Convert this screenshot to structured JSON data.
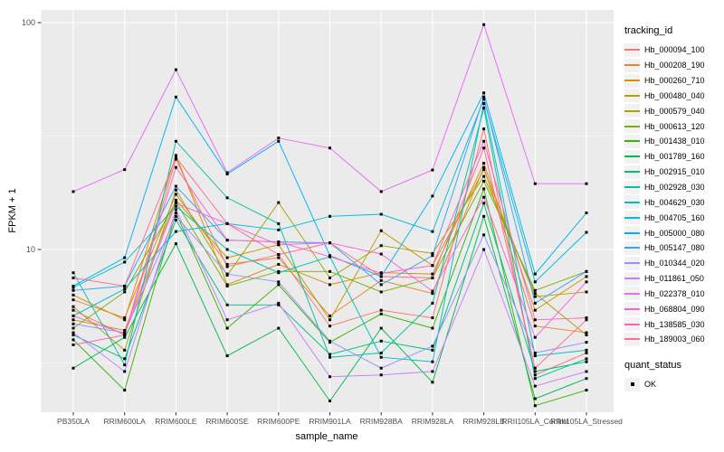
{
  "chart_data": {
    "type": "line",
    "title": "",
    "xlabel": "sample_name",
    "ylabel": "FPKM + 1",
    "y_scale": "log10",
    "y_ticks": [
      10,
      100
    ],
    "y_tick_labels": [
      "10",
      "100"
    ],
    "y_minor_ticks": [
      3.162,
      31.623
    ],
    "ylim": [
      1.9,
      115
    ],
    "grid": "major-and-minor-white-on-grey",
    "legend_position": "right",
    "point_marker": "filled-black-square",
    "categories": [
      "PB350LA",
      "RRIM600LA",
      "RRIM600LE",
      "RRIM600SE",
      "RRIM600PE",
      "RRIM901LA",
      "RRIM928BA",
      "RRIM928LA",
      "RRIM928LB",
      "RRII105LA_Control",
      "RRII105LA_Stressed"
    ],
    "series": [
      {
        "name": "Hb_000094_100",
        "color": "#F8766D",
        "values": [
          5.4,
          4.2,
          25,
          8.4,
          9.5,
          4.6,
          5.4,
          5.0,
          34,
          2.8,
          3.5
        ]
      },
      {
        "name": "Hb_000208_190",
        "color": "#EA8331",
        "values": [
          6.0,
          5.0,
          17.5,
          8.6,
          9.2,
          5.1,
          7.3,
          6.4,
          23,
          4.6,
          4.3
        ]
      },
      {
        "name": "Hb_000260_710",
        "color": "#D89000",
        "values": [
          6.3,
          4.9,
          26,
          7.0,
          8.6,
          7.0,
          7.9,
          7.8,
          24,
          5.4,
          7.6
        ]
      },
      {
        "name": "Hb_000480_040",
        "color": "#C09B00",
        "values": [
          4.9,
          4.4,
          16.5,
          9.2,
          10.5,
          4.9,
          12.1,
          8.5,
          22.5,
          6.2,
          6.5
        ]
      },
      {
        "name": "Hb_000579_040",
        "color": "#A3A500",
        "values": [
          5.6,
          3.6,
          18.3,
          7.7,
          16.1,
          7.5,
          10.4,
          9.6,
          21,
          6.4,
          4.2
        ]
      },
      {
        "name": "Hb_000613_120",
        "color": "#7CAE00",
        "values": [
          4.5,
          6.5,
          16.2,
          6.9,
          8.0,
          8.0,
          6.5,
          7.5,
          20,
          6.6,
          8.0
        ]
      },
      {
        "name": "Hb_001438_010",
        "color": "#39B600",
        "values": [
          4.0,
          2.4,
          14.5,
          4.5,
          7.0,
          3.9,
          5.2,
          4.5,
          18.5,
          2.05,
          2.4
        ]
      },
      {
        "name": "Hb_001789_160",
        "color": "#00BB4E",
        "values": [
          3.0,
          4.1,
          10.6,
          3.4,
          4.5,
          2.15,
          4.5,
          2.6,
          14,
          2.2,
          2.7
        ]
      },
      {
        "name": "Hb_002915_010",
        "color": "#00BF7D",
        "values": [
          4.2,
          3.3,
          13.5,
          5.7,
          5.7,
          3.45,
          3.95,
          3.6,
          16,
          2.9,
          3.2
        ]
      },
      {
        "name": "Hb_002928_030",
        "color": "#00C1A3",
        "values": [
          7.9,
          3.1,
          30,
          16.9,
          13,
          3.35,
          3.5,
          5.8,
          42,
          2.7,
          3.3
        ]
      },
      {
        "name": "Hb_004629_030",
        "color": "#00BFC4",
        "values": [
          6.8,
          8.8,
          15.5,
          10,
          7.9,
          9.3,
          3.35,
          3.2,
          44,
          3.4,
          3.6
        ]
      },
      {
        "name": "Hb_004705_160",
        "color": "#00BBDA",
        "values": [
          5.1,
          6.7,
          12,
          13,
          12.2,
          14,
          14.3,
          12,
          46,
          7.2,
          11.9
        ]
      },
      {
        "name": "Hb_005000_080",
        "color": "#00B0F6",
        "values": [
          6.9,
          9.2,
          47,
          21.5,
          30,
          9.4,
          7.6,
          17.2,
          49,
          7.8,
          14.5
        ]
      },
      {
        "name": "Hb_005147_080",
        "color": "#35A2FF",
        "values": [
          6.6,
          6.9,
          19,
          11,
          10.8,
          10.7,
          7.0,
          9.4,
          47,
          5.8,
          8.0
        ]
      },
      {
        "name": "Hb_010344_020",
        "color": "#9590FF",
        "values": [
          4.7,
          4.3,
          14,
          7.8,
          7.2,
          3.95,
          3.0,
          3.75,
          11.6,
          3.5,
          3.9
        ]
      },
      {
        "name": "Hb_011861_050",
        "color": "#C77CFF",
        "values": [
          4.3,
          2.9,
          15,
          4.9,
          5.8,
          2.75,
          2.8,
          2.9,
          10,
          2.5,
          2.9
        ]
      },
      {
        "name": "Hb_022378_010",
        "color": "#E76BF3",
        "values": [
          18,
          22.5,
          62,
          21.8,
          31,
          28,
          18,
          22.4,
          98,
          19.5,
          19.5
        ]
      },
      {
        "name": "Hb_068804_090",
        "color": "#FA62DB",
        "values": [
          5.1,
          4.25,
          16,
          13,
          10.5,
          10.7,
          9.55,
          6.55,
          17,
          4.1,
          7.2
        ]
      },
      {
        "name": "Hb_138585_030",
        "color": "#FF62BC",
        "values": [
          3.8,
          4.2,
          23,
          11,
          10.8,
          9.3,
          7.85,
          8.5,
          30,
          4.9,
          5.0
        ]
      },
      {
        "name": "Hb_189003_060",
        "color": "#FF6A98",
        "values": [
          7.5,
          6.9,
          25.5,
          13,
          9.5,
          10.7,
          7.6,
          7.5,
          28,
          3.0,
          4.9
        ]
      }
    ],
    "legend": {
      "color_title": "tracking_id",
      "shape_title": "quant_status",
      "shape_items": [
        {
          "label": "OK",
          "marker": "black-square"
        }
      ]
    },
    "colors": {
      "panel_bg": "#EBEBEB",
      "gridline": "#FFFFFF",
      "axis_text": "#4D4D4D",
      "tick_mark": "#333333",
      "legend_key_bg": "#F2F2F2",
      "point": "#000000"
    }
  }
}
